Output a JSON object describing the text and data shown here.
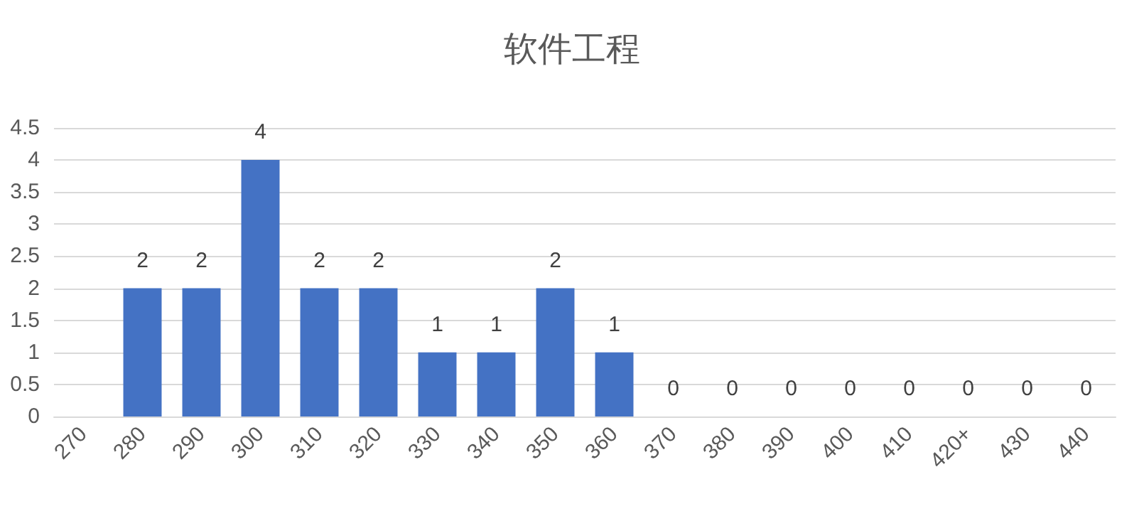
{
  "chart_data": {
    "type": "bar",
    "title": "软件工程",
    "categories": [
      "270",
      "280",
      "290",
      "300",
      "310",
      "320",
      "330",
      "340",
      "350",
      "360",
      "370",
      "380",
      "390",
      "400",
      "410",
      "420+",
      "430",
      "440"
    ],
    "values": [
      null,
      2,
      2,
      4,
      2,
      2,
      1,
      1,
      2,
      1,
      0,
      0,
      0,
      0,
      0,
      0,
      0,
      0
    ],
    "value_labels": [
      null,
      "2",
      "2",
      "4",
      "2",
      "2",
      "1",
      "1",
      "2",
      "1",
      "0",
      "0",
      "0",
      "0",
      "0",
      "0",
      "0",
      "0"
    ],
    "color": "#4472c4",
    "ylim": [
      0,
      4.5
    ],
    "yticks": [
      0,
      0.5,
      1,
      1.5,
      2,
      2.5,
      3,
      3.5,
      4,
      4.5
    ],
    "grid": "y"
  }
}
